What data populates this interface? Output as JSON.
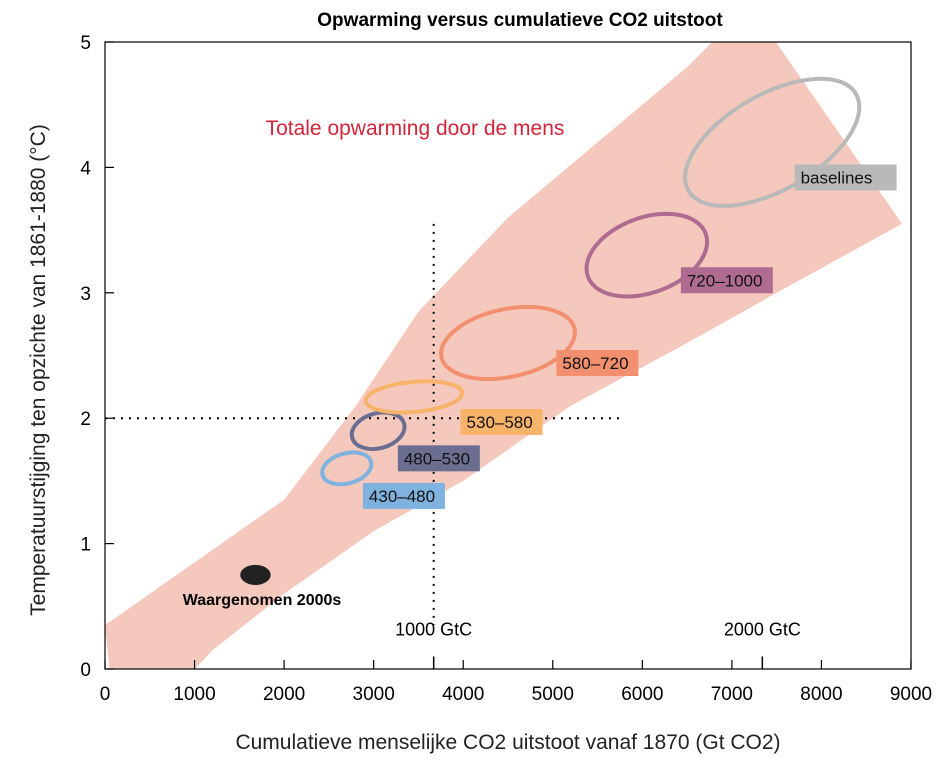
{
  "chart_data": {
    "type": "scatter",
    "title": "Opwarming versus cumulatieve CO2 uitstoot",
    "xlabel": "Cumulatieve menselijke CO2 uitstoot vanaf 1870 (Gt CO2)",
    "ylabel": "Temperatuurstijging ten opzichte van 1861-1880 (°C)",
    "xlim": [
      0,
      9000
    ],
    "ylim": [
      0,
      5
    ],
    "xticks": [
      0,
      1000,
      2000,
      3000,
      4000,
      5000,
      6000,
      7000,
      8000,
      9000
    ],
    "yticks": [
      0,
      1,
      2,
      3,
      4,
      5
    ],
    "grid": false,
    "band": {
      "label": "Totale opwarming door de mens",
      "color": "#f4c8bc",
      "upper": [
        [
          0,
          0.35
        ],
        [
          1000,
          0.85
        ],
        [
          2000,
          1.35
        ],
        [
          2800,
          2.1
        ],
        [
          3500,
          2.85
        ],
        [
          4500,
          3.6
        ],
        [
          5500,
          4.2
        ],
        [
          6500,
          4.8
        ],
        [
          7200,
          5.3
        ]
      ],
      "lower": [
        [
          8900,
          3.55
        ],
        [
          7500,
          3.0
        ],
        [
          6500,
          2.6
        ],
        [
          5200,
          2.1
        ],
        [
          4000,
          1.5
        ],
        [
          3000,
          1.1
        ],
        [
          2000,
          0.6
        ],
        [
          1200,
          0.15
        ],
        [
          600,
          -0.3
        ],
        [
          100,
          -0.35
        ]
      ]
    },
    "reference_lines": {
      "x": 3670,
      "y": 2,
      "x_label": "1000 GtC",
      "color": "#000000"
    },
    "gtc_markers": [
      {
        "x": 3670,
        "label": "1000 GtC"
      },
      {
        "x": 7340,
        "label": "2000 GtC"
      }
    ],
    "observed": {
      "x": 1680,
      "y": 0.75,
      "rx": 170,
      "ry": 0.08,
      "label": "Waargenomen 2000s",
      "color": "#222222"
    },
    "scenarios": [
      {
        "name": "430–480",
        "cx": 2700,
        "cy": 1.6,
        "rx": 280,
        "ry": 0.12,
        "angle": -15,
        "color": "#7fb2de"
      },
      {
        "name": "480–530",
        "cx": 3050,
        "cy": 1.9,
        "rx": 300,
        "ry": 0.14,
        "angle": -15,
        "color": "#6b6e90"
      },
      {
        "name": "530–580",
        "cx": 3450,
        "cy": 2.17,
        "rx": 540,
        "ry": 0.12,
        "angle": -5,
        "color": "#f8b36a"
      },
      {
        "name": "580–720",
        "cx": 4500,
        "cy": 2.6,
        "rx": 760,
        "ry": 0.27,
        "angle": -12,
        "color": "#f28f6e"
      },
      {
        "name": "720–1000",
        "cx": 6050,
        "cy": 3.3,
        "rx": 700,
        "ry": 0.3,
        "angle": -20,
        "color": "#b06b91"
      },
      {
        "name": "baselines",
        "cx": 7450,
        "cy": 4.2,
        "rx": 1080,
        "ry": 0.38,
        "angle": -30,
        "color": "#b9b9b9"
      }
    ]
  }
}
